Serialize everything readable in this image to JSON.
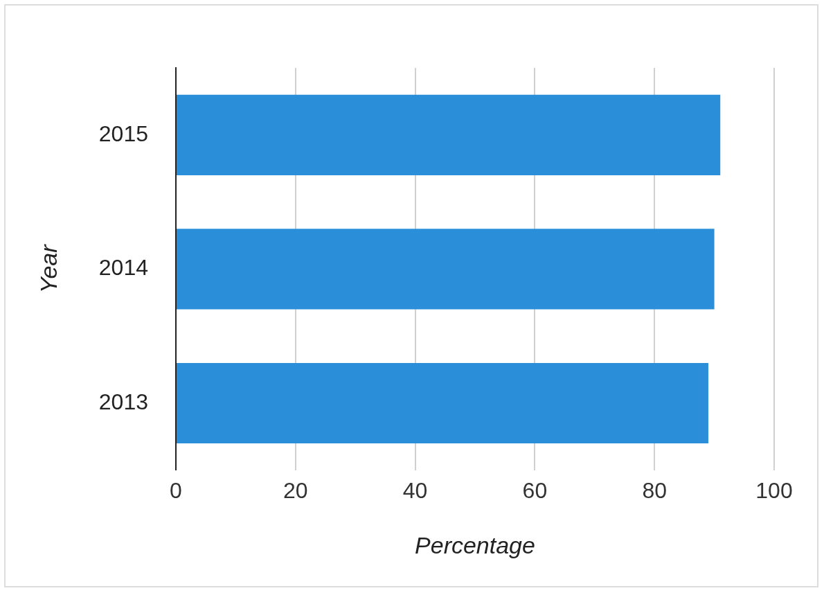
{
  "chart_data": {
    "type": "bar",
    "orientation": "horizontal",
    "xlabel": "Percentage",
    "ylabel": "Year",
    "categories": [
      "2015",
      "2014",
      "2013"
    ],
    "values": [
      91,
      90,
      89
    ],
    "color": "#2a8fd8",
    "xlim": [
      0,
      100
    ],
    "xticks": [
      0,
      20,
      40,
      60,
      80,
      100
    ],
    "grid": "x",
    "legend": false
  }
}
